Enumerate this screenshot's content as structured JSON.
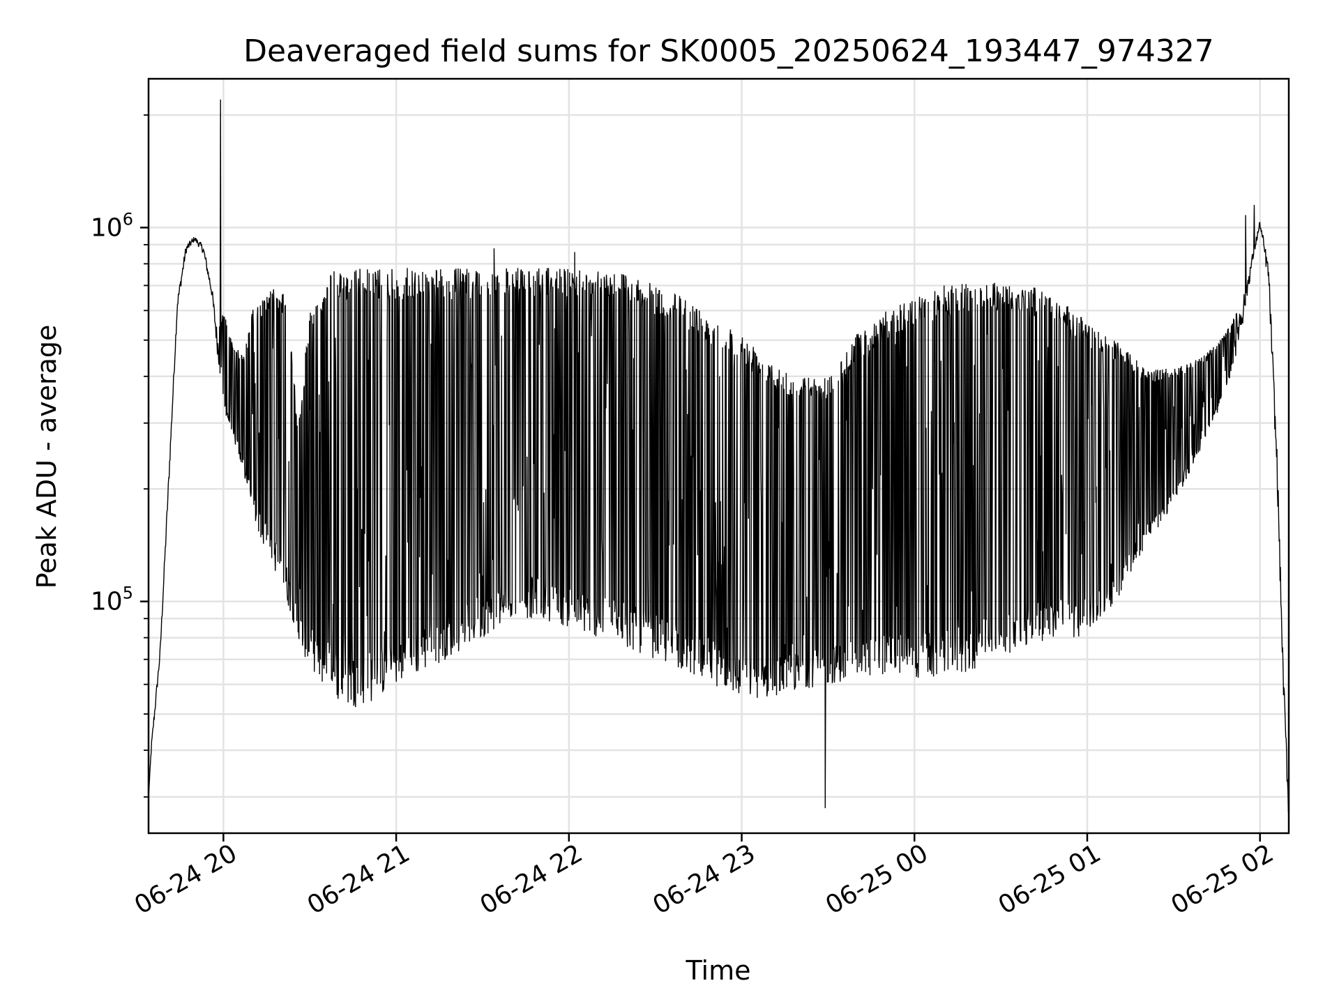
{
  "chart_data": {
    "type": "line",
    "title": "Deaveraged field sums for SK0005_20250624_193447_974327",
    "xlabel": "Time",
    "ylabel": "Peak ADU - average",
    "yscale": "log",
    "xlim": [
      "2025-06-24 19:34",
      "2025-06-25 02:10"
    ],
    "ylim": [
      24000,
      2500000
    ],
    "x_ticks": [
      "06-24 20",
      "06-24 21",
      "06-24 22",
      "06-24 23",
      "06-25 00",
      "06-25 01",
      "06-25 02"
    ],
    "y_ticks": [
      {
        "base": "10",
        "exp": "5",
        "value": 100000
      },
      {
        "base": "10",
        "exp": "6",
        "value": 1000000
      }
    ],
    "grid": true,
    "line_color": "#000000",
    "series": [
      {
        "x": [
          "2025-06-24 19:34",
          "2025-06-24 19:35",
          "2025-06-24 19:38",
          "2025-06-24 19:41",
          "2025-06-24 19:44",
          "2025-06-24 19:47",
          "2025-06-24 19:50",
          "2025-06-24 19:53",
          "2025-06-24 19:56",
          "2025-06-24 19:58",
          "2025-06-24 20:00",
          "2025-06-24 20:03",
          "2025-06-24 20:07",
          "2025-06-24 20:10",
          "2025-06-24 20:14",
          "2025-06-24 20:18",
          "2025-06-24 20:22",
          "2025-06-24 20:26",
          "2025-06-24 20:30",
          "2025-06-24 20:36",
          "2025-06-24 20:40",
          "2025-06-24 20:45",
          "2025-06-24 20:50",
          "2025-06-24 20:55",
          "2025-06-24 21:00",
          "2025-06-24 21:10",
          "2025-06-24 21:20",
          "2025-06-24 21:30",
          "2025-06-24 21:40",
          "2025-06-24 21:50",
          "2025-06-24 22:00",
          "2025-06-24 22:10",
          "2025-06-24 22:20",
          "2025-06-24 22:30",
          "2025-06-24 22:40",
          "2025-06-24 22:50",
          "2025-06-24 23:00",
          "2025-06-24 23:10",
          "2025-06-24 23:20",
          "2025-06-24 23:30",
          "2025-06-24 23:40",
          "2025-06-24 23:50",
          "2025-06-25 00:00",
          "2025-06-25 00:10",
          "2025-06-25 00:20",
          "2025-06-25 00:30",
          "2025-06-25 00:40",
          "2025-06-25 00:50",
          "2025-06-25 01:00",
          "2025-06-25 01:10",
          "2025-06-25 01:20",
          "2025-06-25 01:30",
          "2025-06-25 01:40",
          "2025-06-25 01:46",
          "2025-06-25 01:50",
          "2025-06-25 01:54",
          "2025-06-25 01:58",
          "2025-06-25 02:00",
          "2025-06-25 02:03",
          "2025-06-25 02:06",
          "2025-06-25 02:08",
          "2025-06-25 02:10"
        ],
        "y": [
          30000,
          40000,
          70000,
          200000,
          600000,
          850000,
          920000,
          850000,
          650000,
          450000,
          330000,
          280000,
          220000,
          170000,
          140000,
          120000,
          100000,
          80000,
          65000,
          58000,
          54000,
          52000,
          53000,
          56000,
          60000,
          65000,
          72000,
          80000,
          90000,
          90000,
          85000,
          80000,
          75000,
          70000,
          65000,
          60000,
          55000,
          55000,
          58000,
          60000,
          62000,
          64000,
          62000,
          62000,
          65000,
          72000,
          75000,
          80000,
          80000,
          100000,
          140000,
          180000,
          260000,
          330000,
          400000,
          550000,
          850000,
          1000000,
          700000,
          200000,
          60000,
          25000
        ],
        "y_upper": [
          30000,
          42000,
          75000,
          220000,
          650000,
          900000,
          950000,
          900000,
          700000,
          520000,
          600000,
          500000,
          450000,
          600000,
          650000,
          700000,
          650000,
          300000,
          600000,
          750000,
          780000,
          780000,
          780000,
          780000,
          780000,
          780000,
          780000,
          780000,
          780000,
          780000,
          780000,
          780000,
          760000,
          700000,
          650000,
          580000,
          520000,
          450000,
          400000,
          400000,
          520000,
          600000,
          650000,
          700000,
          720000,
          720000,
          700000,
          650000,
          560000,
          500000,
          420000,
          420000,
          450000,
          500000,
          550000,
          650000,
          900000,
          1050000,
          800000,
          250000,
          70000,
          30000
        ],
        "spikes": [
          {
            "x": "2025-06-24 19:59",
            "y": 2200000
          },
          {
            "x": "2025-06-24 21:34",
            "y": 880000
          },
          {
            "x": "2025-06-24 22:02",
            "y": 860000
          },
          {
            "x": "2025-06-24 23:29",
            "y": 28000
          },
          {
            "x": "2025-06-25 01:58",
            "y": 1150000
          },
          {
            "x": "2025-06-25 01:55",
            "y": 1080000
          }
        ]
      }
    ]
  }
}
